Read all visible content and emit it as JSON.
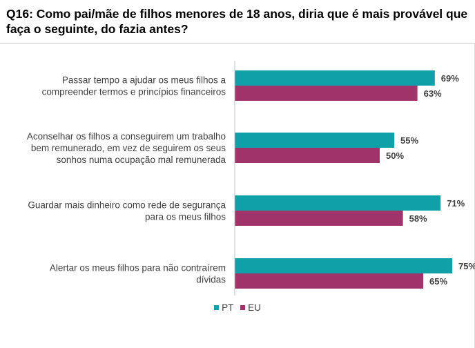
{
  "title": "Q16: Como pai/mãe de filhos menores de 18 anos, diria que é mais provável que faça o seguinte, do fazia antes?",
  "colors": {
    "PT": "#10A0A8",
    "EU": "#A0336A",
    "text": "#404040",
    "axis": "#bfbfbf"
  },
  "chart_data": {
    "type": "bar",
    "orientation": "horizontal",
    "title": "Q16: Como pai/mãe de filhos menores de 18 anos, diria que é mais provável que faça o seguinte, do fazia antes?",
    "categories": [
      [
        "Passar tempo a ajudar os meus filhos a",
        "compreender termos e princípios financeiros"
      ],
      [
        "Aconselhar os filhos a conseguirem um trabalho",
        "bem remunerado, em vez de seguirem os seus",
        "sonhos numa ocupação mal remunerada"
      ],
      [
        "Guardar mais dinheiro como rede de segurança",
        "para os meus filhos"
      ],
      [
        "Alertar os meus filhos para não contraírem",
        "dívidas"
      ]
    ],
    "series": [
      {
        "name": "PT",
        "values": [
          69,
          55,
          71,
          75
        ]
      },
      {
        "name": "EU",
        "values": [
          63,
          50,
          58,
          65
        ]
      }
    ],
    "value_suffix": "%",
    "xlim": [
      0,
      100
    ],
    "grid": false,
    "legend_position": "bottom"
  }
}
